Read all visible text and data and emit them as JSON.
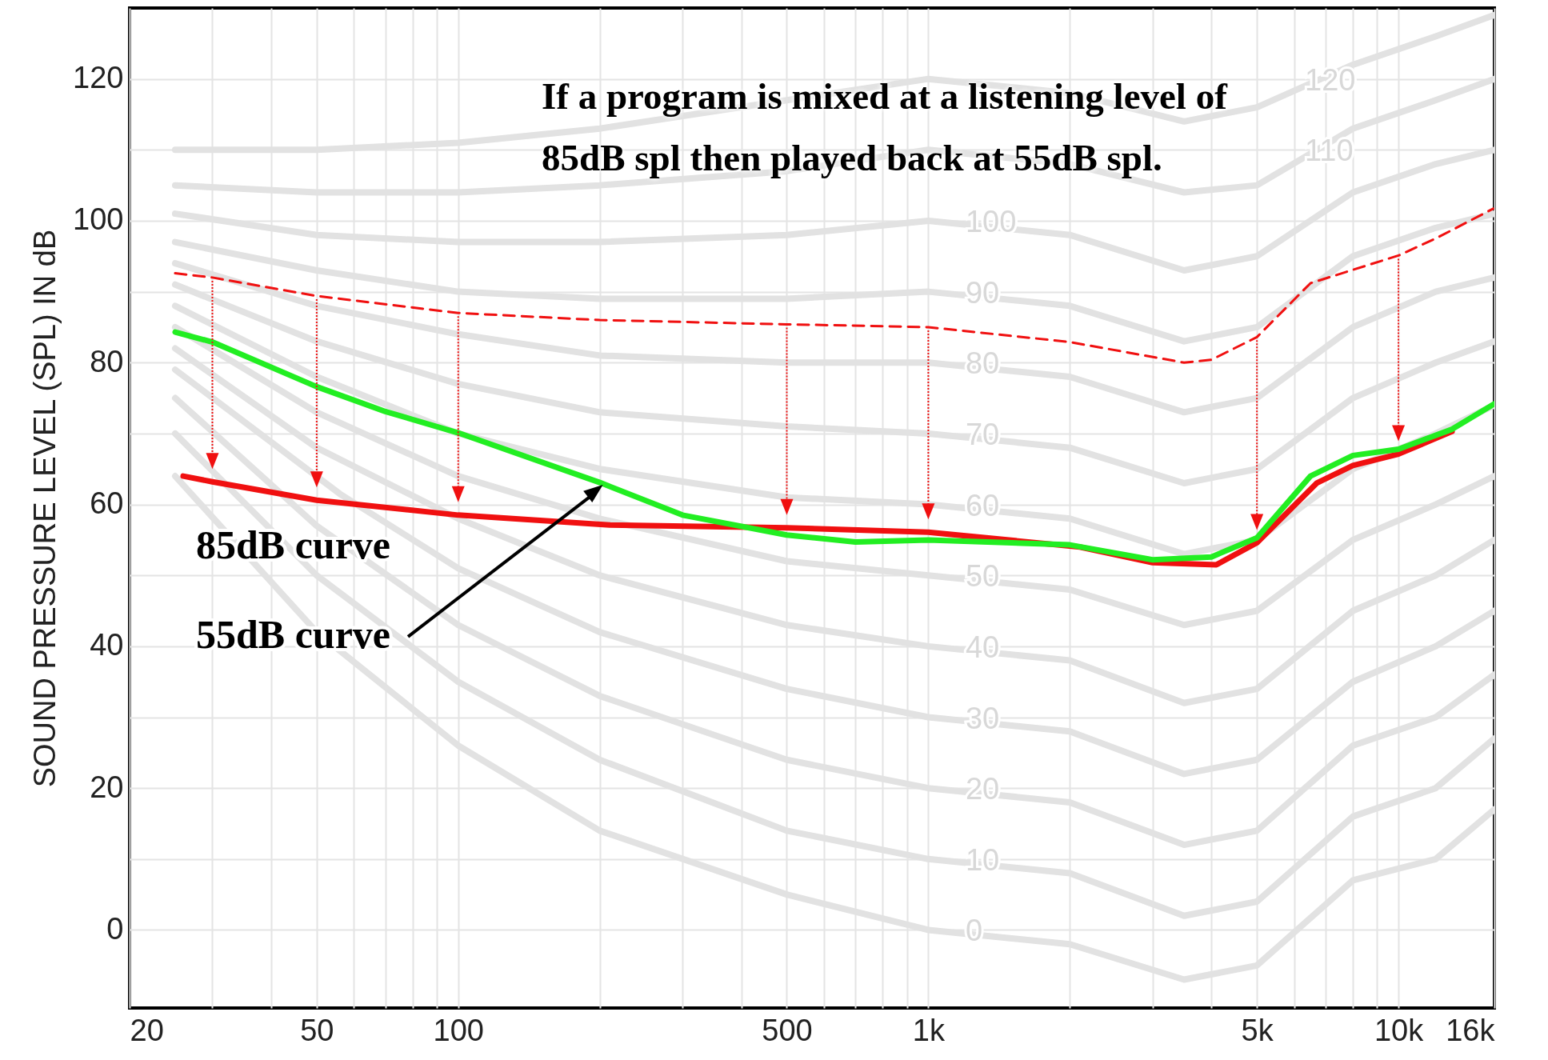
{
  "chart_data": {
    "type": "line",
    "ylabel": "SOUND PRESSURE LEVEL (SPL) IN dB",
    "xlim": [
      20,
      16000
    ],
    "ylim": [
      -11,
      130
    ],
    "log": "x",
    "grid": true,
    "xticks": [
      20,
      {
        "value": 30,
        "label": null
      },
      {
        "value": 40,
        "label": null
      },
      50,
      {
        "value": 60,
        "label": null
      },
      {
        "value": 70,
        "label": null
      },
      {
        "value": 80,
        "label": null
      },
      {
        "value": 90,
        "label": null
      },
      100,
      {
        "value": 200,
        "label": null
      },
      {
        "value": 300,
        "label": null
      },
      {
        "value": 400,
        "label": null
      },
      500,
      {
        "value": 600,
        "label": null
      },
      {
        "value": 700,
        "label": null
      },
      {
        "value": 800,
        "label": null
      },
      {
        "value": 900,
        "label": null
      },
      {
        "value": 1000,
        "label": "1k"
      },
      {
        "value": 2000,
        "label": null
      },
      {
        "value": 3000,
        "label": null
      },
      {
        "value": 4000,
        "label": null
      },
      {
        "value": 5000,
        "label": "5k"
      },
      {
        "value": 6000,
        "label": null
      },
      {
        "value": 7000,
        "label": null
      },
      {
        "value": 8000,
        "label": null
      },
      {
        "value": 9000,
        "label": null
      },
      {
        "value": 10000,
        "label": "10k"
      },
      {
        "value": 16000,
        "label": "16k"
      }
    ],
    "yticks": [
      0,
      {
        "value": 10,
        "label": null
      },
      20,
      {
        "value": 30,
        "label": null
      },
      40,
      {
        "value": 50,
        "label": null
      },
      60,
      {
        "value": 70,
        "label": null
      },
      80,
      {
        "value": 90,
        "label": null
      },
      100,
      {
        "value": 110,
        "label": null
      },
      120
    ],
    "annotations": [
      "If a program is mixed at a listening level of 85dB spl then played back at 55dB spl."
    ],
    "series": [
      {
        "name": "0",
        "color": "#e2e2e2",
        "x": [
          25,
          50,
          100,
          200,
          500,
          1000,
          2000,
          3500,
          5000,
          8000,
          12000,
          16000
        ],
        "values": [
          64,
          42,
          26,
          14,
          5,
          0,
          -2,
          -7,
          -5,
          7,
          10,
          17
        ]
      },
      {
        "name": "10",
        "color": "#e2e2e2",
        "x": [
          25,
          50,
          100,
          200,
          500,
          1000,
          2000,
          3500,
          5000,
          8000,
          12000,
          16000
        ],
        "values": [
          70,
          50,
          35,
          24,
          14,
          10,
          8,
          2,
          4,
          16,
          20,
          27
        ]
      },
      {
        "name": "20",
        "color": "#e2e2e2",
        "x": [
          25,
          50,
          100,
          200,
          500,
          1000,
          2000,
          3500,
          5000,
          8000,
          12000,
          16000
        ],
        "values": [
          75,
          57,
          43,
          33,
          24,
          20,
          18,
          12,
          14,
          26,
          30,
          36
        ]
      },
      {
        "name": "30",
        "color": "#e2e2e2",
        "x": [
          25,
          56,
          100,
          200,
          500,
          1000,
          2000,
          3500,
          5000,
          8000,
          12000,
          16000
        ],
        "values": [
          79,
          61.5,
          51,
          42,
          34,
          30,
          28,
          22,
          24,
          35,
          40,
          45
        ]
      },
      {
        "name": "40",
        "color": "#e2e2e2",
        "x": [
          25,
          50,
          100,
          200,
          500,
          1000,
          2000,
          3500,
          5000,
          8000,
          12000,
          16000
        ],
        "values": [
          82,
          68,
          58,
          50,
          43,
          40,
          38,
          32,
          34,
          45,
          50,
          55
        ]
      },
      {
        "name": "50",
        "color": "#e2e2e2",
        "x": [
          25,
          50,
          100,
          200,
          500,
          1000,
          2000,
          3500,
          5000,
          8000,
          12000,
          16000
        ],
        "values": [
          85,
          73,
          64,
          58,
          52,
          50,
          48,
          43,
          45,
          55,
          60,
          64
        ]
      },
      {
        "name": "60",
        "color": "#e2e2e2",
        "x": [
          25,
          50,
          100,
          200,
          500,
          1000,
          2000,
          3500,
          5000,
          8000,
          12000,
          16000
        ],
        "values": [
          88,
          78,
          70,
          65,
          61,
          60,
          58,
          53,
          55,
          65,
          70,
          74
        ]
      },
      {
        "name": "70",
        "color": "#e2e2e2",
        "x": [
          25,
          50,
          100,
          200,
          500,
          1000,
          2000,
          3500,
          5000,
          8000,
          12000,
          16000
        ],
        "values": [
          91,
          83,
          77,
          73,
          71,
          70,
          68,
          63,
          65,
          75,
          80,
          83
        ]
      },
      {
        "name": "80",
        "color": "#e2e2e2",
        "x": [
          25,
          50,
          100,
          200,
          500,
          1000,
          2000,
          3500,
          5000,
          8000,
          12000,
          16000
        ],
        "values": [
          94,
          88,
          84,
          81,
          80,
          80,
          78,
          73,
          75,
          85,
          90,
          92
        ]
      },
      {
        "name": "90",
        "color": "#e2e2e2",
        "x": [
          25,
          50,
          100,
          200,
          500,
          1000,
          2000,
          3500,
          5000,
          8000,
          12000,
          16000
        ],
        "values": [
          97,
          93,
          90,
          89,
          89,
          90,
          88,
          83,
          85,
          95,
          99,
          101
        ]
      },
      {
        "name": "100",
        "color": "#e2e2e2",
        "x": [
          25,
          50,
          100,
          200,
          500,
          1000,
          2000,
          3500,
          5000,
          8000,
          12000,
          16000
        ],
        "values": [
          101,
          98,
          97,
          97,
          98,
          100,
          98,
          93,
          95,
          104,
          108,
          110
        ]
      },
      {
        "name": "110",
        "color": "#e2e2e2",
        "x": [
          25,
          50,
          100,
          200,
          500,
          1000,
          2000,
          3500,
          5000,
          8000,
          12000,
          16000
        ],
        "values": [
          105,
          104,
          104,
          105,
          107,
          110,
          108,
          104,
          105,
          113,
          117,
          120
        ]
      },
      {
        "name": "120",
        "color": "#e2e2e2",
        "x": [
          25,
          50,
          100,
          200,
          500,
          1000,
          2000,
          3500,
          5000,
          8000,
          12000,
          16000
        ],
        "values": [
          110,
          110,
          111,
          113,
          117,
          120,
          118,
          114,
          116,
          122,
          126,
          129
        ]
      },
      {
        "color": "#f01010",
        "line_style": "dashed",
        "x": [
          25,
          30,
          50,
          100,
          200,
          500,
          1000,
          2000,
          3500,
          4000,
          5000,
          6500,
          10000,
          12000,
          15900
        ],
        "values": [
          92.6,
          92,
          89.4,
          87,
          86,
          85.4,
          85,
          82.9,
          80,
          80.4,
          83.6,
          91.2,
          95.1,
          97.5,
          101.7
        ]
      },
      {
        "name": "85dB curve",
        "color": "#f01010",
        "x": [
          26,
          30,
          50,
          100,
          210,
          500,
          1000,
          2100,
          3000,
          4100,
          5000,
          6700,
          8000,
          10000,
          13000
        ],
        "values": [
          64,
          63.2,
          60.6,
          58.5,
          57.1,
          56.7,
          56.1,
          54,
          51.8,
          51.5,
          54.6,
          63,
          65.5,
          67.1,
          70.3
        ]
      },
      {
        "name": "55dB curve",
        "color": "#22ee22",
        "x": [
          25,
          30,
          50,
          70,
          100,
          200,
          300,
          500,
          700,
          1000,
          2000,
          3000,
          4000,
          5000,
          6500,
          8000,
          10000,
          13000,
          16000
        ],
        "values": [
          84.3,
          82.9,
          76.6,
          73.1,
          70.1,
          63.1,
          58.5,
          55.7,
          54.7,
          55,
          54.3,
          52.2,
          52.6,
          55.3,
          64,
          66.9,
          67.8,
          70.6,
          74.2
        ]
      }
    ]
  }
}
